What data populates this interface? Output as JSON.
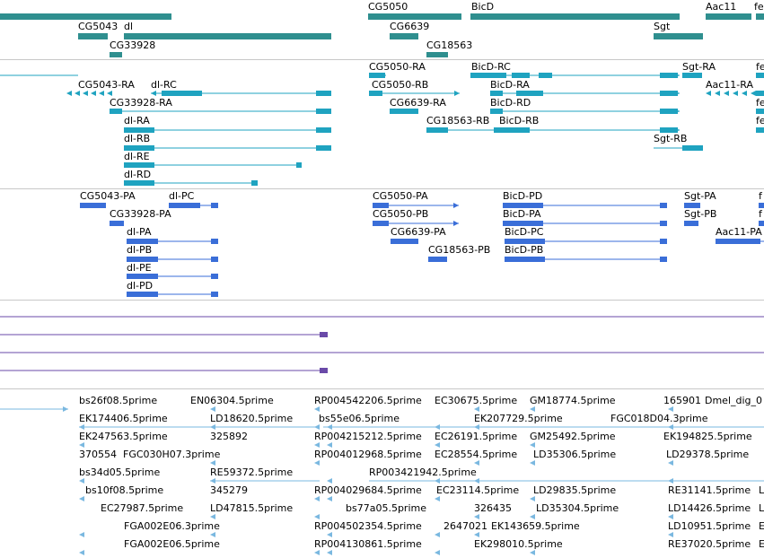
{
  "colors": {
    "gene": "#2f8f8f",
    "transcript": "#1fa3c0",
    "protein": "#3a6ed8",
    "rna": "#6a4aa8",
    "est": "#7ab8e0",
    "separator": "#c8c8c8"
  },
  "tracks": {
    "genes": [
      "CG5050",
      "BicD",
      "Aac11",
      "fe",
      "CG5043",
      "dl",
      "CG6639",
      "Sgt",
      "CG33928",
      "CG18563"
    ],
    "transcripts": [
      "CG5050-RA",
      "BicD-RC",
      "Sgt-RA",
      "fe",
      "CG5043-RA",
      "dl-RC",
      "CG5050-RB",
      "BicD-RA",
      "Aac11-RA",
      "CG33928-RA",
      "CG6639-RA",
      "BicD-RD",
      "fe",
      "CG18563-RB",
      "BicD-RB",
      "fe",
      "dl-RA",
      "dl-RB",
      "Sgt-RB",
      "dl-RE",
      "dl-RD"
    ],
    "proteins": [
      "CG5043-PA",
      "dl-PC",
      "CG5050-PA",
      "BicD-PD",
      "Sgt-PA",
      "f",
      "CG33928-PA",
      "CG5050-PB",
      "BicD-PA",
      "Sgt-PB",
      "f",
      "dl-PA",
      "CG6639-PA",
      "BicD-PC",
      "Aac11-PA",
      "dl-PB",
      "CG18563-PB",
      "BicD-PB",
      "dl-PE",
      "dl-PD"
    ],
    "ests": [
      "bs26f08.5prime",
      "EN06304.5prime",
      "RP004542206.5prime",
      "EC30675.5prime",
      "GM18774.5prime",
      "165901",
      "Dmel_dig_0",
      "EK174406.5prime",
      "LD18620.5prime",
      "bs55e06.5prime",
      "EK207729.5prime",
      "FGC018D04.3prime",
      "EK247563.5prime",
      "325892",
      "RP004215212.5prime",
      "EC26191.5prime",
      "GM25492.5prime",
      "EK194825.5prime",
      "370554",
      "FGC030H07.3prime",
      "RP004012968.5prime",
      "EC28554.5prime",
      "LD35306.5prime",
      "LD29378.5prime",
      "bs34d05.5prime",
      "RE59372.5prime",
      "RP003421942.5prime",
      "bs10f08.5prime",
      "345279",
      "RP004029684.5prime",
      "EC23114.5prime",
      "LD29835.5prime",
      "RE31141.5prime",
      "L",
      "EC27987.5prime",
      "LD47815.5prime",
      "bs77a05.5prime",
      "326435",
      "LD35304.5prime",
      "LD14426.5prime",
      "L",
      "FGA002E06.3prime",
      "RP004502354.5prime",
      "2647021",
      "EK143659.5prime",
      "LD10951.5prime",
      "E",
      "FGA002E06.5prime",
      "RP004130861.5prime",
      "EK298010.5prime",
      "RE37020.5prime",
      "E"
    ]
  }
}
